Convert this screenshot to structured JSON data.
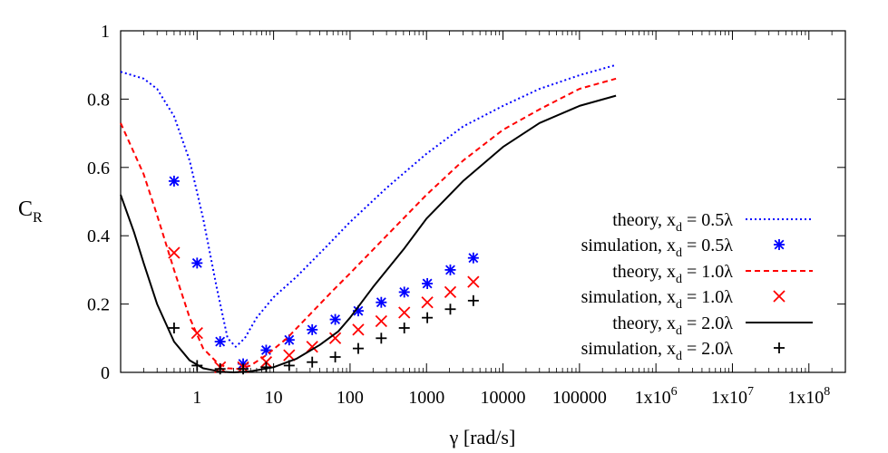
{
  "chart_data": {
    "type": "line",
    "title": "",
    "xlabel": "γ [rad/s]",
    "ylabel": "C_R",
    "ylabel_main": "C",
    "ylabel_sub": "R",
    "xscale": "log",
    "xlim": [
      0.1,
      300000000
    ],
    "ylim": [
      0,
      1
    ],
    "grid": false,
    "legend_position": "right",
    "x_ticks": [
      {
        "value": 1,
        "label": "1"
      },
      {
        "value": 10,
        "label": "10"
      },
      {
        "value": 100,
        "label": "100"
      },
      {
        "value": 1000,
        "label": "1000"
      },
      {
        "value": 10000,
        "label": "10000"
      },
      {
        "value": 100000,
        "label": "100000"
      },
      {
        "value": 1000000,
        "label": "1x10",
        "exp": "6"
      },
      {
        "value": 10000000,
        "label": "1x10",
        "exp": "7"
      },
      {
        "value": 100000000,
        "label": "1x10",
        "exp": "8"
      }
    ],
    "y_ticks": [
      {
        "value": 0,
        "label": "0"
      },
      {
        "value": 0.2,
        "label": "0.2"
      },
      {
        "value": 0.4,
        "label": "0.4"
      },
      {
        "value": 0.6,
        "label": "0.6"
      },
      {
        "value": 0.8,
        "label": "0.8"
      },
      {
        "value": 1,
        "label": "1"
      }
    ],
    "series": [
      {
        "name": "theory, x_d = 0.5λ",
        "legend_main": "theory, x",
        "legend_sub": "d",
        "legend_rest": " = 0.5λ",
        "kind": "line",
        "color": "#0000ff",
        "dash": "2,3",
        "x": [
          0.1,
          0.2,
          0.3,
          0.5,
          0.8,
          1.2,
          1.8,
          2.5,
          3.2,
          4.2,
          6,
          10,
          20,
          50,
          100,
          300,
          1000,
          3000,
          10000,
          30000,
          100000,
          300000
        ],
        "y": [
          0.88,
          0.86,
          0.83,
          0.75,
          0.62,
          0.45,
          0.25,
          0.1,
          0.075,
          0.1,
          0.16,
          0.22,
          0.28,
          0.37,
          0.44,
          0.54,
          0.64,
          0.72,
          0.78,
          0.83,
          0.87,
          0.9
        ]
      },
      {
        "name": "simulation, x_d = 0.5λ",
        "legend_main": "simulation, x",
        "legend_sub": "d",
        "legend_rest": " = 0.5λ",
        "kind": "points",
        "marker": "asterisk",
        "color": "#0000ff",
        "x": [
          0.5,
          1,
          2,
          4,
          8,
          16,
          32,
          64,
          128,
          256,
          512,
          1024,
          2048,
          4096
        ],
        "y": [
          0.56,
          0.32,
          0.09,
          0.025,
          0.065,
          0.095,
          0.125,
          0.155,
          0.18,
          0.205,
          0.235,
          0.26,
          0.3,
          0.335
        ]
      },
      {
        "name": "theory, x_d = 1.0λ",
        "legend_main": "theory, x",
        "legend_sub": "d",
        "legend_rest": " = 1.0λ",
        "kind": "line",
        "color": "#ff0000",
        "dash": "6,4",
        "x": [
          0.1,
          0.2,
          0.3,
          0.5,
          0.8,
          1.2,
          1.8,
          2.5,
          3.5,
          5,
          8,
          15,
          30,
          60,
          100,
          300,
          1000,
          3000,
          10000,
          30000,
          100000,
          300000
        ],
        "y": [
          0.73,
          0.58,
          0.46,
          0.3,
          0.16,
          0.07,
          0.03,
          0.012,
          0.01,
          0.02,
          0.05,
          0.1,
          0.17,
          0.24,
          0.29,
          0.4,
          0.52,
          0.62,
          0.71,
          0.77,
          0.83,
          0.86
        ]
      },
      {
        "name": "simulation, x_d = 1.0λ",
        "legend_main": "simulation, x",
        "legend_sub": "d",
        "legend_rest": " = 1.0λ",
        "kind": "points",
        "marker": "cross",
        "color": "#ff0000",
        "x": [
          0.5,
          1,
          2,
          4,
          8,
          16,
          32,
          64,
          128,
          256,
          512,
          1024,
          2048,
          4096
        ],
        "y": [
          0.35,
          0.115,
          0.015,
          0.015,
          0.03,
          0.05,
          0.075,
          0.1,
          0.125,
          0.15,
          0.175,
          0.205,
          0.235,
          0.265
        ]
      },
      {
        "name": "theory, x_d = 2.0λ",
        "legend_main": "theory, x",
        "legend_sub": "d",
        "legend_rest": " = 2.0λ",
        "kind": "line",
        "color": "#000000",
        "dash": "",
        "x": [
          0.1,
          0.15,
          0.2,
          0.3,
          0.5,
          0.8,
          1.2,
          2,
          3,
          5,
          10,
          20,
          40,
          70,
          100,
          200,
          500,
          1000,
          3000,
          10000,
          30000,
          100000,
          300000
        ],
        "y": [
          0.52,
          0.41,
          0.32,
          0.2,
          0.09,
          0.035,
          0.012,
          0.002,
          0.0,
          0.003,
          0.015,
          0.04,
          0.08,
          0.12,
          0.16,
          0.25,
          0.36,
          0.45,
          0.56,
          0.66,
          0.73,
          0.78,
          0.81
        ]
      },
      {
        "name": "simulation, x_d = 2.0λ",
        "legend_main": "simulation, x",
        "legend_sub": "d",
        "legend_rest": " = 2.0λ",
        "kind": "points",
        "marker": "plus",
        "color": "#000000",
        "x": [
          0.5,
          1,
          2,
          4,
          8,
          16,
          32,
          64,
          128,
          256,
          512,
          1024,
          2048,
          4096
        ],
        "y": [
          0.13,
          0.02,
          0.01,
          0.01,
          0.015,
          0.02,
          0.03,
          0.045,
          0.07,
          0.1,
          0.13,
          0.16,
          0.185,
          0.21
        ]
      }
    ]
  }
}
